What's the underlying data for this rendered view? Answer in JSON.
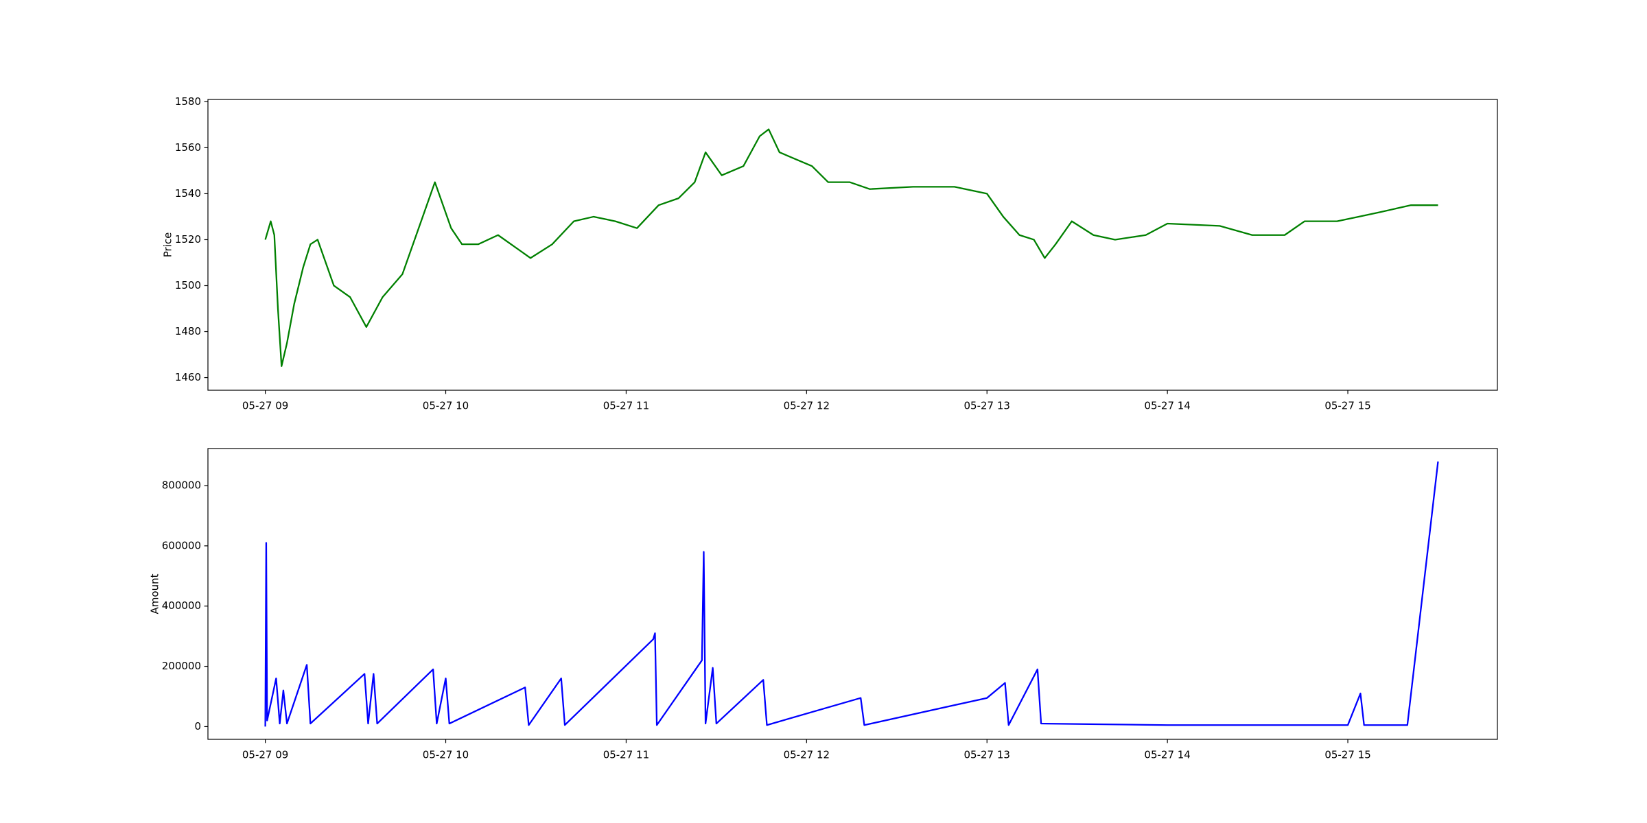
{
  "chart_data": [
    {
      "type": "line",
      "ylabel": "Price",
      "color": "#008000",
      "x": [
        9.0,
        9.03,
        9.05,
        9.07,
        9.09,
        9.12,
        9.16,
        9.21,
        9.25,
        9.29,
        9.38,
        9.47,
        9.56,
        9.65,
        9.76,
        9.85,
        9.94,
        10.03,
        10.09,
        10.18,
        10.29,
        10.47,
        10.59,
        10.71,
        10.82,
        10.94,
        11.06,
        11.18,
        11.29,
        11.38,
        11.44,
        11.53,
        11.65,
        11.74,
        11.79,
        11.85,
        11.94,
        12.03,
        12.12,
        12.24,
        12.35,
        12.59,
        12.82,
        13.0,
        13.09,
        13.18,
        13.26,
        13.32,
        13.38,
        13.47,
        13.59,
        13.71,
        13.88,
        14.0,
        14.29,
        14.47,
        14.65,
        14.76,
        14.94,
        15.06,
        15.18,
        15.35,
        15.5
      ],
      "values": [
        1520,
        1528,
        1522,
        1490,
        1465,
        1475,
        1492,
        1508,
        1518,
        1520,
        1500,
        1495,
        1482,
        1495,
        1505,
        1525,
        1545,
        1525,
        1518,
        1518,
        1522,
        1512,
        1518,
        1528,
        1530,
        1528,
        1525,
        1535,
        1538,
        1545,
        1558,
        1548,
        1552,
        1565,
        1568,
        1558,
        1555,
        1552,
        1545,
        1545,
        1542,
        1543,
        1543,
        1540,
        1530,
        1522,
        1520,
        1512,
        1518,
        1528,
        1522,
        1520,
        1522,
        1527,
        1526,
        1522,
        1522,
        1528,
        1528,
        1530,
        1532,
        1535,
        1535
      ],
      "xlim": [
        8.682,
        15.829
      ],
      "ylim": [
        1454.5,
        1581
      ],
      "xticks": [
        {
          "value": 9,
          "label": "05-27 09"
        },
        {
          "value": 10,
          "label": "05-27 10"
        },
        {
          "value": 11,
          "label": "05-27 11"
        },
        {
          "value": 12,
          "label": "05-27 12"
        },
        {
          "value": 13,
          "label": "05-27 13"
        },
        {
          "value": 14,
          "label": "05-27 14"
        },
        {
          "value": 15,
          "label": "05-27 15"
        }
      ],
      "yticks": [
        1460,
        1480,
        1500,
        1520,
        1540,
        1560,
        1580
      ]
    },
    {
      "type": "line",
      "ylabel": "Amount",
      "color": "#0000ff",
      "x": [
        9.0,
        9.005,
        9.01,
        9.06,
        9.08,
        9.1,
        9.12,
        9.23,
        9.25,
        9.55,
        9.57,
        9.6,
        9.62,
        9.93,
        9.95,
        10.0,
        10.02,
        10.44,
        10.46,
        10.64,
        10.66,
        11.15,
        11.16,
        11.17,
        11.42,
        11.43,
        11.44,
        11.48,
        11.5,
        11.76,
        11.78,
        12.3,
        12.32,
        13.0,
        13.1,
        13.12,
        13.28,
        13.3,
        14.0,
        15.0,
        15.07,
        15.09,
        15.33,
        15.5
      ],
      "values": [
        0,
        610000,
        20000,
        160000,
        10000,
        120000,
        10000,
        205000,
        10000,
        175000,
        10000,
        175000,
        10000,
        190000,
        10000,
        160000,
        10000,
        130000,
        5000,
        160000,
        5000,
        290000,
        310000,
        5000,
        220000,
        580000,
        10000,
        195000,
        10000,
        155000,
        5000,
        95000,
        5000,
        95000,
        145000,
        5000,
        190000,
        10000,
        5000,
        5000,
        110000,
        5000,
        5000,
        880000
      ],
      "xlim": [
        8.682,
        15.829
      ],
      "ylim": [
        -42300,
        923000
      ],
      "xticks": [
        {
          "value": 9,
          "label": "05-27 09"
        },
        {
          "value": 10,
          "label": "05-27 10"
        },
        {
          "value": 11,
          "label": "05-27 11"
        },
        {
          "value": 12,
          "label": "05-27 12"
        },
        {
          "value": 13,
          "label": "05-27 13"
        },
        {
          "value": 14,
          "label": "05-27 14"
        },
        {
          "value": 15,
          "label": "05-27 15"
        }
      ],
      "yticks": [
        0,
        200000,
        400000,
        600000,
        800000
      ]
    }
  ]
}
